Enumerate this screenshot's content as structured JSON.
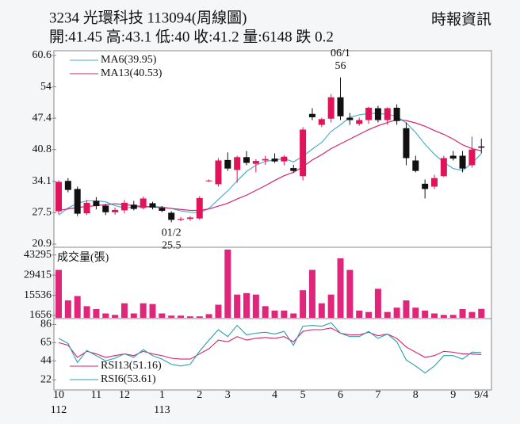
{
  "header": {
    "title": "3234  光環科技 113094(周線圖)",
    "quote": "開:41.45 高:43.1 低:40 收:41.2 量:6148 跌 0.2",
    "source": "時報資訊"
  },
  "chart_data": [
    {
      "type": "candlestick",
      "categories": [
        "10",
        null,
        null,
        null,
        "11",
        null,
        null,
        "12",
        null,
        null,
        null,
        "1",
        null,
        null,
        null,
        "2",
        null,
        null,
        "3",
        null,
        null,
        null,
        null,
        "4",
        null,
        null,
        "5",
        null,
        null,
        null,
        "6",
        null,
        null,
        null,
        "7",
        null,
        null,
        null,
        "8",
        null,
        null,
        null,
        "9",
        null,
        null,
        "9/4"
      ],
      "category_years": [
        "112",
        null,
        null,
        null,
        null,
        null,
        null,
        null,
        null,
        null,
        null,
        "113",
        null,
        null,
        null,
        null,
        null,
        null,
        null,
        null,
        null,
        null,
        null,
        null,
        null,
        null,
        null,
        null,
        null,
        null,
        null,
        null,
        null,
        null,
        null,
        null,
        null,
        null,
        null,
        null,
        null,
        null,
        null,
        null,
        null,
        null
      ],
      "open": [
        27.8,
        34.2,
        32.5,
        27.4,
        30.0,
        29.0,
        27.6,
        28.0,
        29.2,
        28.5,
        29.5,
        28.5,
        27.5,
        26.0,
        26.2,
        26.3,
        34.2,
        33.5,
        38.6,
        36.5,
        39.2,
        37.8,
        38.5,
        38.9,
        38.3,
        36.9,
        35.2,
        48.3,
        46.0,
        47.3,
        51.8,
        47.5,
        46.2,
        47.0,
        49.5,
        47.0,
        49.6,
        45.3,
        38.5,
        33.6,
        33.0,
        35.2,
        39.5,
        39.5,
        37.5,
        41.45
      ],
      "high": [
        34.3,
        34.8,
        33.0,
        30.2,
        30.8,
        29.3,
        28.6,
        30.2,
        30.0,
        30.9,
        29.8,
        28.9,
        27.8,
        26.6,
        26.8,
        31.0,
        34.5,
        39.0,
        40.2,
        39.5,
        40.5,
        38.8,
        39.5,
        40.0,
        39.6,
        37.6,
        45.5,
        49.5,
        47.5,
        52.5,
        56,
        48.5,
        47.5,
        49.8,
        50.0,
        49.7,
        50.3,
        46.5,
        39.5,
        34.5,
        35.5,
        39.5,
        40.5,
        40.5,
        43.5,
        43.1
      ],
      "low": [
        27.2,
        31.8,
        26.8,
        27.0,
        28.2,
        27.0,
        27.1,
        27.4,
        28.0,
        28.2,
        28.2,
        27.6,
        25.5,
        25.7,
        25.8,
        26.0,
        34.0,
        33.0,
        36.3,
        33.8,
        37.5,
        36.0,
        37.6,
        38.0,
        37.5,
        35.9,
        34.3,
        47.0,
        45.5,
        46.5,
        47.0,
        46.0,
        45.8,
        46.2,
        46.5,
        46.0,
        46.0,
        37.5,
        36.0,
        30.5,
        32.5,
        35.0,
        38.5,
        36.0,
        37.0,
        40
      ],
      "close": [
        34.0,
        32.3,
        27.3,
        29.6,
        28.9,
        27.6,
        28.1,
        29.6,
        28.3,
        30.5,
        28.6,
        27.9,
        26.0,
        26.2,
        26.5,
        30.6,
        34.3,
        38.5,
        36.8,
        39.2,
        38.0,
        38.4,
        38.8,
        38.3,
        39.3,
        36.3,
        45.0,
        47.6,
        47.2,
        51.8,
        47.8,
        47.0,
        47.0,
        49.6,
        47.0,
        49.5,
        46.8,
        39.0,
        36.3,
        32.5,
        34.8,
        39.0,
        38.9,
        36.8,
        40.8,
        41.2
      ],
      "up_color": "#e0145a",
      "down_color": "#111111",
      "series": [
        {
          "name": "MA6(39.95)",
          "color": "#4aaed0",
          "values": [
            27.0,
            28.5,
            29.5,
            30.0,
            30.0,
            29.8,
            29.0,
            28.5,
            28.7,
            28.8,
            28.8,
            28.7,
            28.4,
            27.9,
            27.6,
            27.5,
            28.4,
            30.3,
            32.1,
            34.2,
            36.2,
            37.5,
            38.3,
            38.6,
            38.9,
            38.2,
            39.4,
            40.9,
            42.3,
            44.6,
            46.0,
            47.6,
            48.1,
            48.4,
            48.4,
            48.2,
            47.8,
            46.4,
            44.4,
            41.9,
            39.8,
            38.1,
            36.8,
            36.4,
            37.9,
            39.95
          ]
        },
        {
          "name": "MA13(40.53)",
          "color": "#d6246a",
          "values": [
            28.0,
            28.3,
            28.6,
            28.8,
            29.0,
            29.2,
            29.4,
            29.2,
            29.0,
            28.8,
            28.7,
            28.6,
            28.4,
            28.2,
            28.0,
            28.0,
            28.3,
            28.9,
            29.5,
            30.4,
            31.2,
            32.2,
            33.2,
            34.3,
            35.3,
            36.0,
            37.2,
            38.6,
            39.7,
            41.0,
            42.0,
            43.0,
            44.0,
            45.0,
            45.8,
            46.5,
            47.1,
            46.9,
            46.4,
            45.7,
            44.8,
            44.0,
            43.0,
            41.8,
            41.0,
            40.53
          ]
        }
      ],
      "annotations": [
        {
          "label": "06/1",
          "value": 56,
          "at": "high"
        },
        {
          "label": "01/2",
          "value": 25.5,
          "at": "low"
        }
      ],
      "ylim": [
        20.9,
        60.6
      ],
      "yticks": [
        20.9,
        27.5,
        34.1,
        40.8,
        47.4,
        54.0,
        60.6
      ]
    },
    {
      "type": "bar",
      "title": "成交量(張)",
      "color": "#e0267a",
      "values": [
        33000,
        12000,
        15000,
        8000,
        6000,
        3000,
        2000,
        10000,
        3000,
        10000,
        9500,
        3000,
        1500,
        1500,
        1000,
        1000,
        2500,
        9000,
        47000,
        16000,
        17000,
        16000,
        8000,
        5000,
        5000,
        3000,
        19000,
        33000,
        10000,
        16000,
        41000,
        33000,
        5000,
        4000,
        20000,
        4000,
        7000,
        12000,
        7000,
        5000,
        3000,
        2000,
        2000,
        6000,
        4000,
        6148
      ],
      "ylim": [
        0,
        47500
      ],
      "yticks": [
        1656,
        15536,
        29415,
        43295
      ]
    },
    {
      "type": "line",
      "series": [
        {
          "name": "RSI13(51.16)",
          "color": "#d6246a",
          "values": [
            65,
            62,
            48,
            55,
            52,
            48,
            50,
            52,
            50,
            55,
            52,
            50,
            47,
            46,
            46,
            52,
            58,
            68,
            66,
            72,
            68,
            70,
            71,
            70,
            72,
            66,
            78,
            80,
            80,
            82,
            76,
            74,
            74,
            77,
            73,
            75,
            70,
            60,
            54,
            48,
            50,
            55,
            54,
            52,
            52,
            51.16
          ]
        },
        {
          "name": "RSI6(53.61)",
          "color": "#2a9fb0",
          "values": [
            70,
            64,
            42,
            56,
            50,
            44,
            47,
            52,
            48,
            57,
            50,
            46,
            40,
            38,
            40,
            55,
            68,
            80,
            72,
            85,
            74,
            76,
            77,
            75,
            78,
            62,
            84,
            85,
            84,
            88,
            76,
            72,
            72,
            78,
            70,
            75,
            66,
            45,
            38,
            30,
            38,
            50,
            50,
            46,
            54,
            53.61
          ]
        }
      ],
      "ylim": [
        14,
        91
      ],
      "yticks": [
        22,
        44,
        65,
        86
      ]
    }
  ]
}
